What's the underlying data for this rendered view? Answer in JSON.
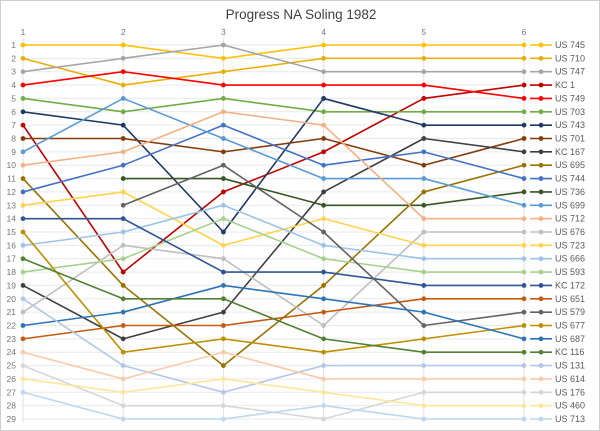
{
  "title": "Progress NA Soling 1982",
  "colors": {
    "title_text": "#404040",
    "axis_text": "#757575",
    "legend_text": "#595959",
    "gridline": "#e9e9e9",
    "column_line": "#e2e2e2",
    "plot_border": "#d9d9d9"
  },
  "chart_data": {
    "type": "line",
    "subtype": "bump-rank-progress",
    "title": "Progress NA Soling 1982",
    "x_labels": [
      "1",
      "2",
      "3",
      "4",
      "5",
      "6"
    ],
    "xlabel": "",
    "ylabel": "",
    "y_axis": {
      "min": 1,
      "max": 29,
      "inverted": true,
      "tick_step": 1
    },
    "grid": true,
    "legend_position": "right",
    "legend_note": "legend entries ordered by finishing position in race 6",
    "series": [
      {
        "name": "US 745",
        "color": "#FFC000",
        "positions": [
          1,
          1,
          2,
          1,
          1,
          1
        ]
      },
      {
        "name": "US 710",
        "color": "#E8B007",
        "positions": [
          2,
          4,
          3,
          2,
          2,
          2
        ]
      },
      {
        "name": "US 747",
        "color": "#A5A5A5",
        "positions": [
          3,
          2,
          1,
          3,
          3,
          3
        ]
      },
      {
        "name": "KC 1",
        "color": "#C00000",
        "positions": [
          7,
          18,
          12,
          9,
          5,
          4
        ]
      },
      {
        "name": "US 749",
        "color": "#FF0000",
        "positions": [
          4,
          3,
          4,
          4,
          4,
          5
        ]
      },
      {
        "name": "US 703",
        "color": "#70AD47",
        "positions": [
          5,
          6,
          5,
          6,
          6,
          6
        ]
      },
      {
        "name": "US 743",
        "color": "#1F3864",
        "positions": [
          6,
          7,
          15,
          5,
          7,
          7
        ]
      },
      {
        "name": "US 701",
        "color": "#843C0C",
        "positions": [
          8,
          8,
          9,
          8,
          10,
          8
        ]
      },
      {
        "name": "KC 167",
        "color": "#404040",
        "positions": [
          19,
          23,
          21,
          12,
          8,
          9
        ]
      },
      {
        "name": "US 695",
        "color": "#997300",
        "positions": [
          11,
          19,
          25,
          19,
          12,
          10
        ]
      },
      {
        "name": "US 744",
        "color": "#4472C4",
        "positions": [
          12,
          10,
          7,
          10,
          9,
          11
        ]
      },
      {
        "name": "US 736",
        "color": "#375623",
        "positions": [
          null,
          11,
          11,
          13,
          13,
          12
        ]
      },
      {
        "name": "US 699",
        "color": "#5B9BD5",
        "positions": [
          9,
          5,
          8,
          11,
          11,
          13
        ]
      },
      {
        "name": "US 712",
        "color": "#F4B183",
        "positions": [
          10,
          9,
          6,
          7,
          14,
          14
        ]
      },
      {
        "name": "US 676",
        "color": "#BFBFBF",
        "positions": [
          21,
          16,
          17,
          22,
          15,
          15
        ]
      },
      {
        "name": "US 723",
        "color": "#FFD34D",
        "positions": [
          13,
          12,
          16,
          14,
          16,
          16
        ]
      },
      {
        "name": "US 666",
        "color": "#9DC3E6",
        "positions": [
          16,
          15,
          13,
          16,
          17,
          17
        ]
      },
      {
        "name": "US 593",
        "color": "#A9D18E",
        "positions": [
          18,
          17,
          14,
          17,
          18,
          18
        ]
      },
      {
        "name": "KC 172",
        "color": "#2F5597",
        "positions": [
          14,
          14,
          18,
          18,
          19,
          19
        ]
      },
      {
        "name": "US 651",
        "color": "#C55A11",
        "positions": [
          23,
          22,
          22,
          21,
          20,
          20
        ]
      },
      {
        "name": "US 579",
        "color": "#636363",
        "positions": [
          null,
          13,
          10,
          15,
          22,
          21
        ]
      },
      {
        "name": "US 677",
        "color": "#BF8F00",
        "positions": [
          15,
          24,
          23,
          24,
          23,
          22
        ]
      },
      {
        "name": "US 687",
        "color": "#2E75B6",
        "positions": [
          22,
          21,
          19,
          20,
          21,
          23
        ]
      },
      {
        "name": "KC 116",
        "color": "#538135",
        "positions": [
          17,
          20,
          20,
          23,
          24,
          24
        ]
      },
      {
        "name": "US 131",
        "color": "#B4C7E7",
        "positions": [
          20,
          25,
          27,
          25,
          25,
          25
        ]
      },
      {
        "name": "US 614",
        "color": "#F8CBAD",
        "positions": [
          24,
          26,
          24,
          26,
          26,
          26
        ]
      },
      {
        "name": "US 176",
        "color": "#D6D6D6",
        "positions": [
          25,
          28,
          28,
          29,
          27,
          27
        ]
      },
      {
        "name": "US 460",
        "color": "#FFE699",
        "positions": [
          26,
          27,
          26,
          27,
          28,
          28
        ]
      },
      {
        "name": "US 713",
        "color": "#BDD7EE",
        "positions": [
          27,
          29,
          29,
          28,
          29,
          29
        ]
      }
    ]
  }
}
